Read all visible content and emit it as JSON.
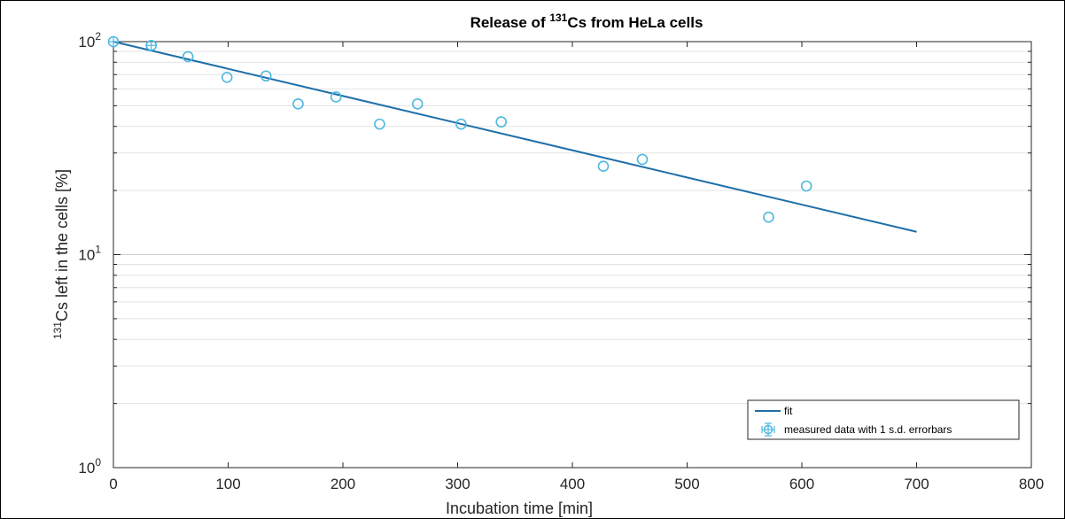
{
  "chart_data": {
    "type": "scatter",
    "title_main": "Release of ",
    "title_sup": "131",
    "title_rest": "Cs from HeLa cells",
    "xlabel": "Incubation time [min]",
    "ylabel_sup": "131",
    "ylabel_rest": "Cs left in the cells [%]",
    "xlim": [
      0,
      800
    ],
    "ylim": [
      1,
      100
    ],
    "yscale": "log",
    "grid": "y-major-and-minor",
    "legend_position": "bottom-right",
    "x_ticks": [
      "0",
      "100",
      "200",
      "300",
      "400",
      "500",
      "600",
      "700",
      "800"
    ],
    "y_ticks": [
      {
        "base": "10",
        "exp": "0"
      },
      {
        "base": "10",
        "exp": "1"
      },
      {
        "base": "10",
        "exp": "2"
      }
    ],
    "series": [
      {
        "name": "fit",
        "kind": "line",
        "color": "#1f6fa8",
        "x": [
          0,
          700
        ],
        "y": [
          100,
          12.8
        ]
      },
      {
        "name": "measured data with 1 s.d. errorbars",
        "kind": "markers",
        "color": "#4db8e0",
        "x": [
          0,
          33,
          65,
          99,
          133,
          161,
          194,
          232,
          265,
          303,
          338,
          427,
          461,
          571,
          604
        ],
        "y": [
          100,
          96,
          85,
          68,
          69,
          51,
          55,
          41,
          51,
          41,
          42,
          26,
          28,
          15,
          21
        ]
      }
    ]
  }
}
